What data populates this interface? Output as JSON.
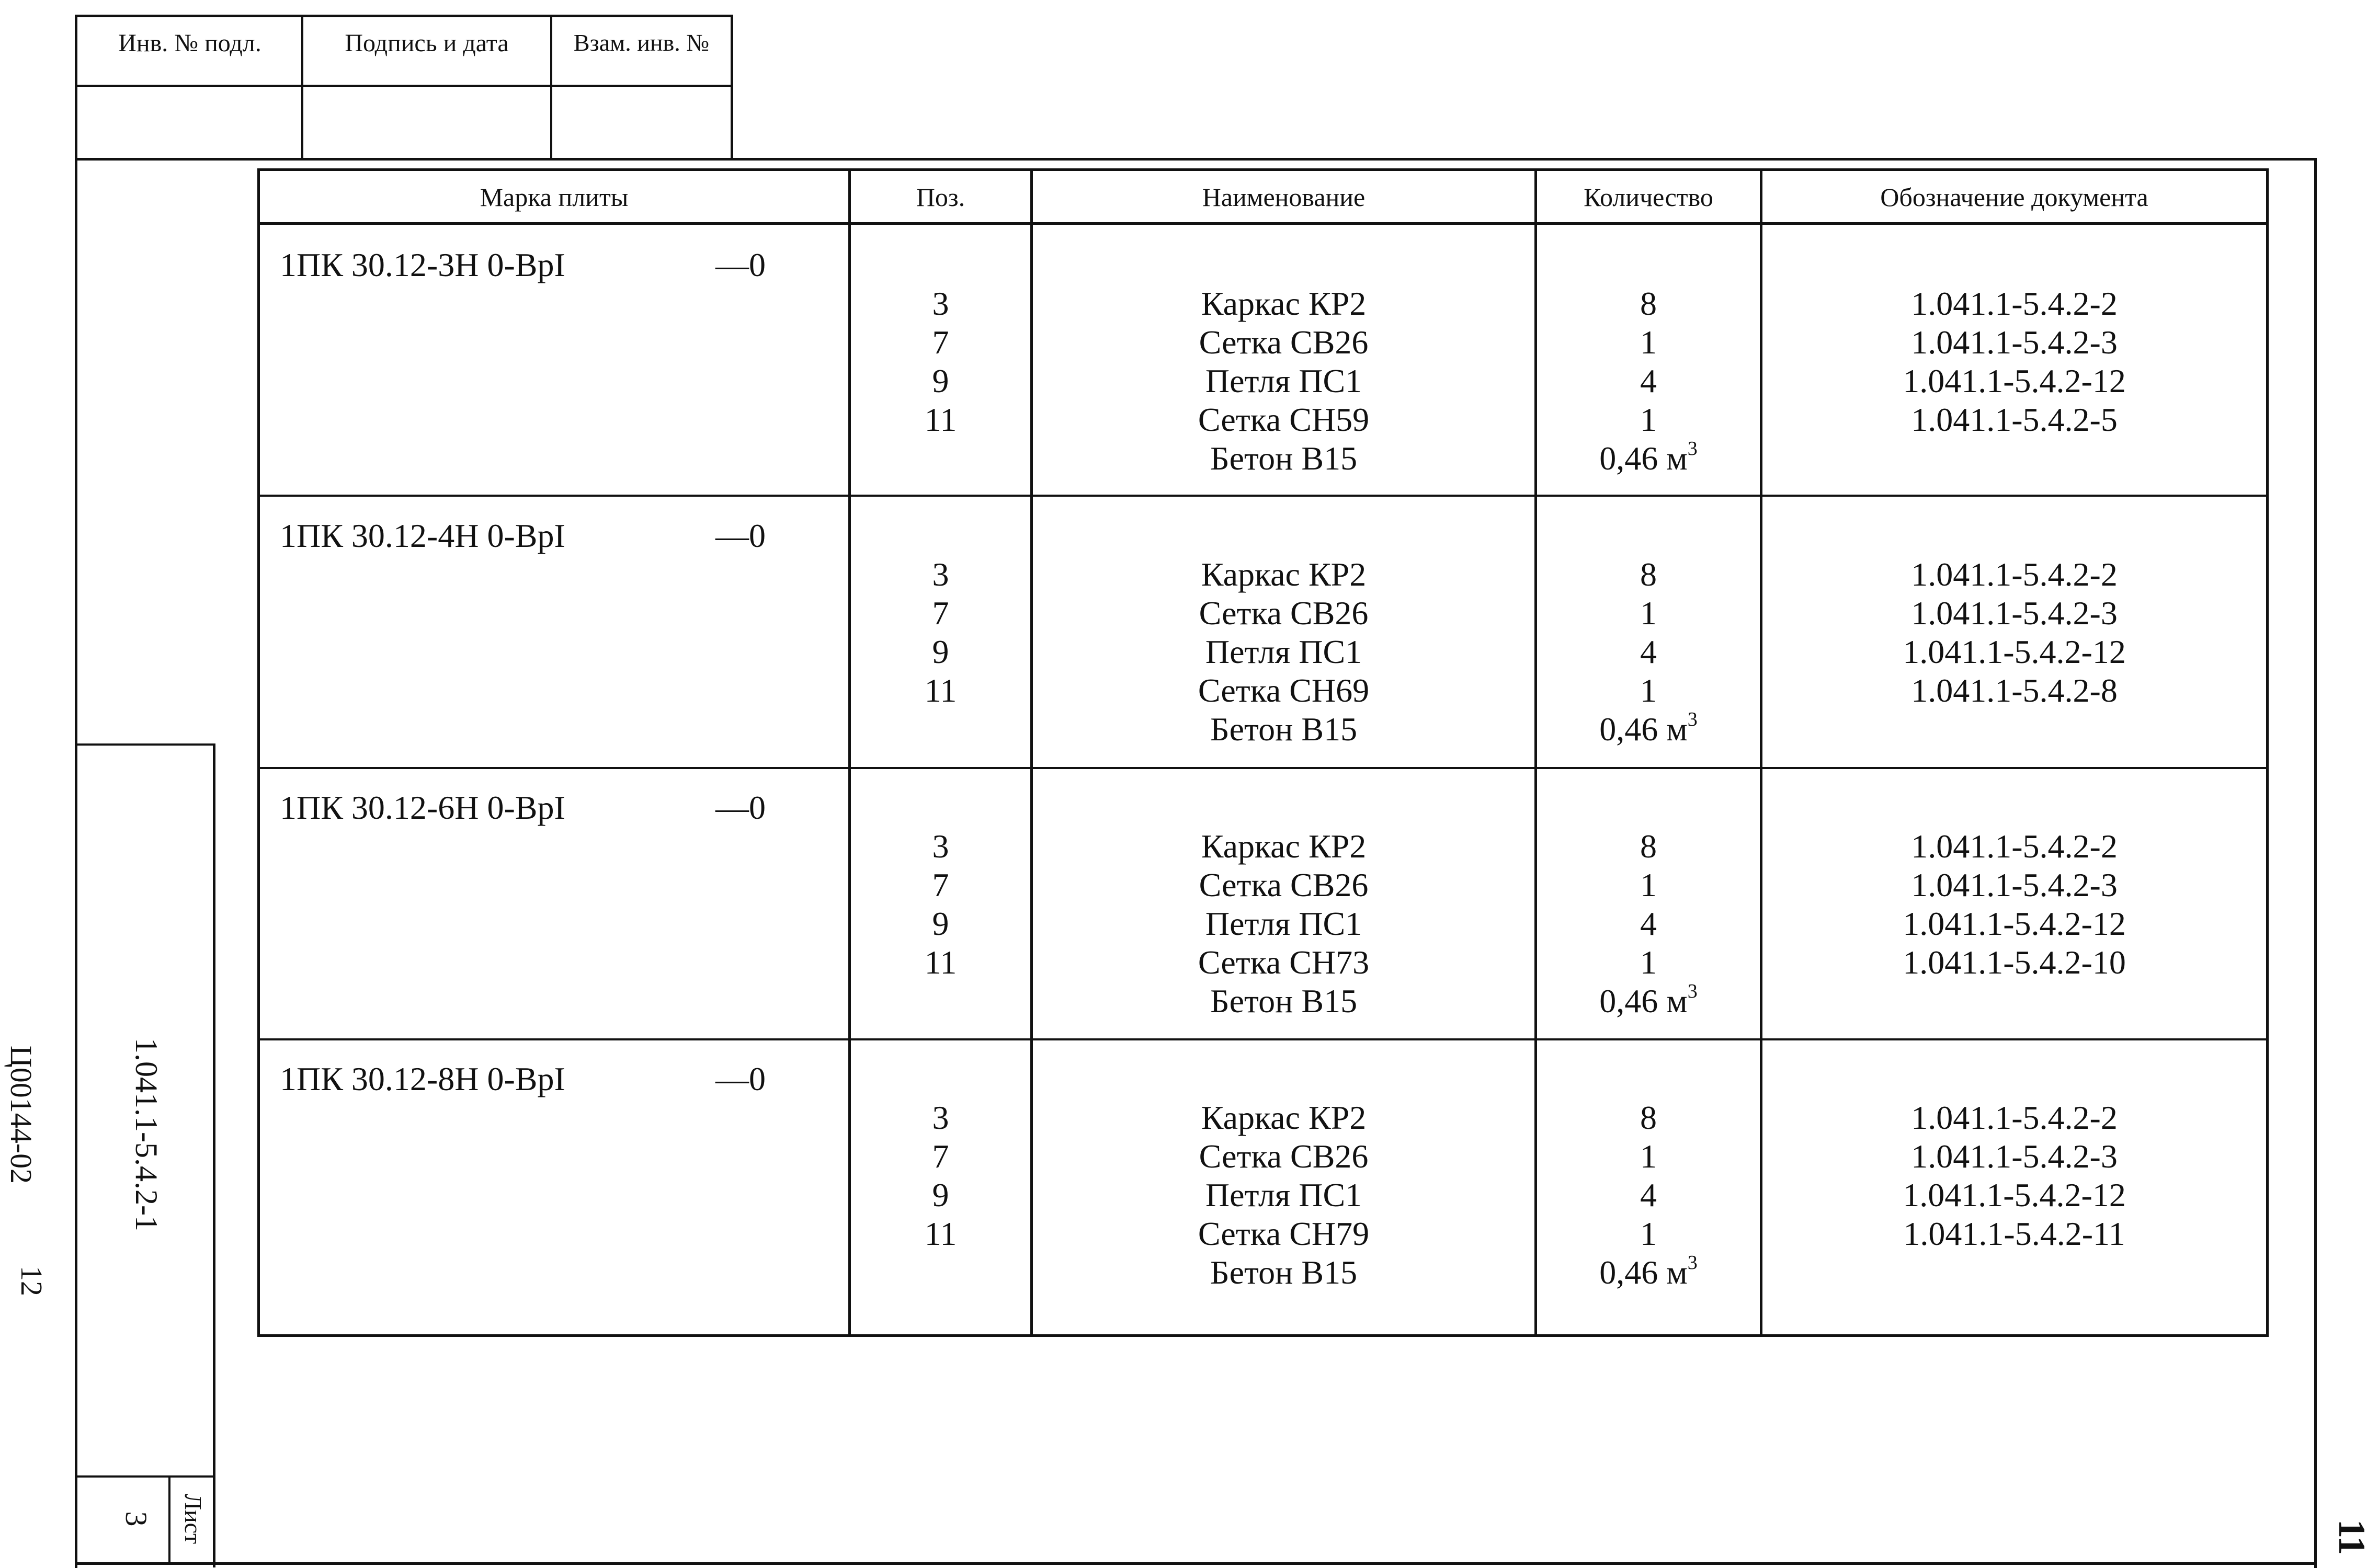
{
  "stamp": {
    "col1": "Инв. № подл.",
    "col2": "Подпись и дата",
    "col3": "Взам. инв. №"
  },
  "table": {
    "headers": {
      "mark": "Марка плиты",
      "pos": "Поз.",
      "name": "Наименование",
      "qty": "Количество",
      "doc": "Обозначение документа"
    },
    "groups": [
      {
        "mark": "1ПК 30.12-3Н 0-ВрI",
        "suffix": "—0",
        "pos": [
          "3",
          "7",
          "9",
          "11",
          ""
        ],
        "names": [
          "Каркас КР2",
          "Сетка СВ26",
          "Петля ПС1",
          "Сетка СН59",
          "Бетон В15"
        ],
        "qty": [
          "8",
          "1",
          "4",
          "1"
        ],
        "qty_volume": "0,46 м",
        "qty_unit_power": "3",
        "docs": [
          "1.041.1-5.4.2-2",
          "1.041.1-5.4.2-3",
          "1.041.1-5.4.2-12",
          "1.041.1-5.4.2-5"
        ]
      },
      {
        "mark": "1ПК 30.12-4Н 0-ВрI",
        "suffix": "—0",
        "pos": [
          "3",
          "7",
          "9",
          "11",
          ""
        ],
        "names": [
          "Каркас КР2",
          "Сетка СВ26",
          "Петля ПС1",
          "Сетка СН69",
          "Бетон В15"
        ],
        "qty": [
          "8",
          "1",
          "4",
          "1"
        ],
        "qty_volume": "0,46 м",
        "qty_unit_power": "3",
        "docs": [
          "1.041.1-5.4.2-2",
          "1.041.1-5.4.2-3",
          "1.041.1-5.4.2-12",
          "1.041.1-5.4.2-8"
        ]
      },
      {
        "mark": "1ПК 30.12-6Н 0-ВрI",
        "suffix": "—0",
        "pos": [
          "3",
          "7",
          "9",
          "11",
          ""
        ],
        "names": [
          "Каркас КР2",
          "Сетка СВ26",
          "Петля ПС1",
          "Сетка СН73",
          "Бетон В15"
        ],
        "qty": [
          "8",
          "1",
          "4",
          "1"
        ],
        "qty_volume": "0,46 м",
        "qty_unit_power": "3",
        "docs": [
          "1.041.1-5.4.2-2",
          "1.041.1-5.4.2-3",
          "1.041.1-5.4.2-12",
          "1.041.1-5.4.2-10"
        ]
      },
      {
        "mark": "1ПК 30.12-8Н 0-ВрI",
        "suffix": "—0",
        "pos": [
          "3",
          "7",
          "9",
          "11",
          ""
        ],
        "names": [
          "Каркас КР2",
          "Сетка СВ26",
          "Петля ПС1",
          "Сетка СН79",
          "Бетон В15"
        ],
        "qty": [
          "8",
          "1",
          "4",
          "1"
        ],
        "qty_volume": "0,46 м",
        "qty_unit_power": "3",
        "docs": [
          "1.041.1-5.4.2-2",
          "1.041.1-5.4.2-3",
          "1.041.1-5.4.2-12",
          "1.041.1-5.4.2-11"
        ]
      }
    ]
  },
  "side": {
    "doc_code": "1.041.1-5.4.2-1",
    "sheet_label": "Лист",
    "sheet_number": "3"
  },
  "margin": {
    "code": "Ц00144-02",
    "page": "12"
  },
  "page_number_right": "11"
}
